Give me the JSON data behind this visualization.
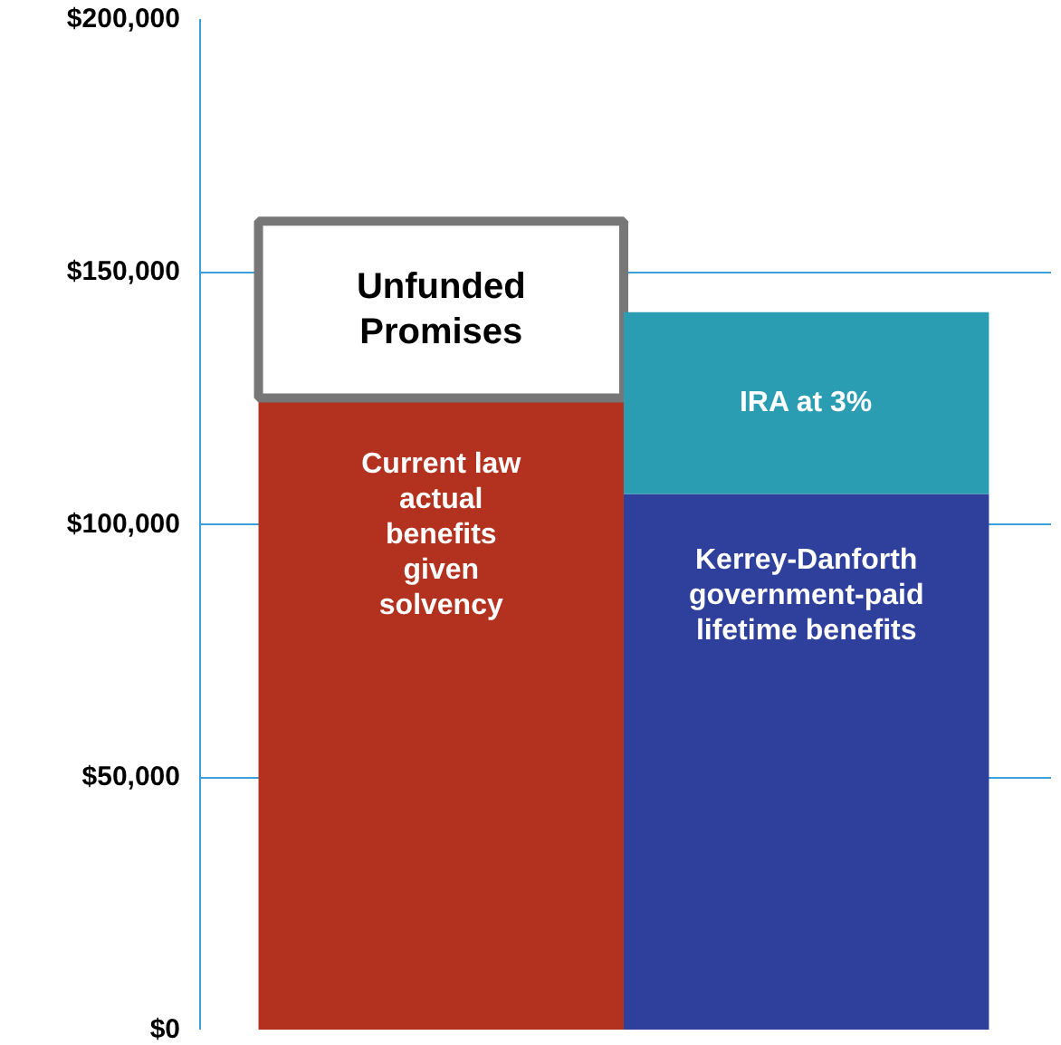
{
  "chart_data": {
    "type": "bar",
    "stacked": true,
    "categories": [
      null,
      null
    ],
    "series": [
      {
        "name": "Current law\nactual\nbenefits\ngiven\nsolvency",
        "color": "#b3321f",
        "values": [
          125000,
          null
        ]
      },
      {
        "name": "Unfunded\nPromises",
        "color": "#ffffff",
        "values": [
          35000,
          null
        ]
      },
      {
        "name": "Kerrey-Danforth\ngovernment-paid\nlifetime benefits",
        "color": "#2f3f9c",
        "values": [
          null,
          106000
        ]
      },
      {
        "name": "IRA at 3%",
        "color": "#2b9db3",
        "values": [
          null,
          36000
        ]
      }
    ],
    "ylim": [
      0,
      200000
    ],
    "yticks": [
      {
        "value": 0,
        "label": "$0"
      },
      {
        "value": 50000,
        "label": "$50,000"
      },
      {
        "value": 100000,
        "label": "$100,000"
      },
      {
        "value": 150000,
        "label": "$150,000"
      },
      {
        "value": 200000,
        "label": "$200,000"
      }
    ],
    "grid": "y"
  }
}
